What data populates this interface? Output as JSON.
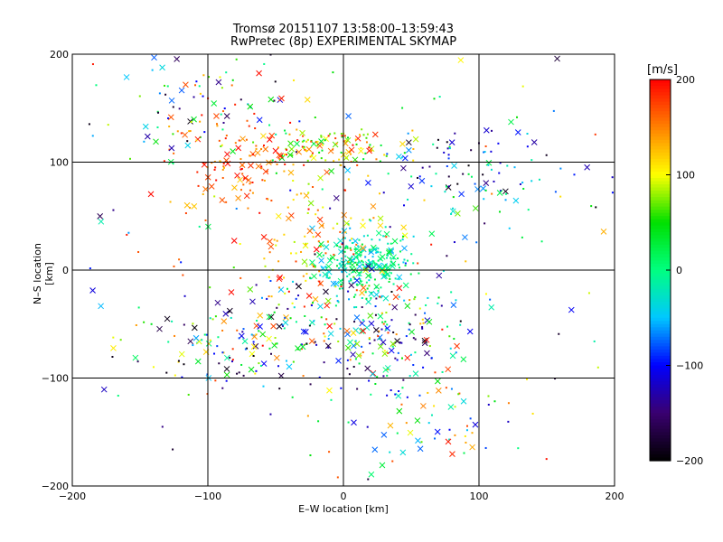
{
  "chart_data": {
    "type": "scatter",
    "title": "Tromsø 20151107 13:58:00–13:59:43",
    "subtitle": "RwPretec (8p) EXPERIMENTAL SKYMAP",
    "xlabel": "E–W location [km]",
    "ylabel": "N–S location [km]",
    "xlim": [
      -200,
      200
    ],
    "ylim": [
      -200,
      200
    ],
    "xticks": [
      -200,
      -100,
      0,
      100,
      200
    ],
    "yticks": [
      -200,
      -100,
      0,
      100,
      200
    ],
    "grid": true,
    "colorbar": {
      "label": "[m/s]",
      "range": [
        -200,
        200
      ],
      "ticks": [
        -200,
        -100,
        0,
        100,
        200
      ],
      "colormap": [
        "#000000",
        "#3a0070",
        "#0000ff",
        "#00c8ff",
        "#00ff80",
        "#00e000",
        "#ffff00",
        "#ff8000",
        "#ff0000"
      ]
    },
    "marker_legend": "x = larger marker, . = small marker",
    "clusters": [
      {
        "cx": 15,
        "cy": 5,
        "sx": 18,
        "sy": 15,
        "n": 260,
        "vmin": -60,
        "vmax": 40
      },
      {
        "cx": -20,
        "cy": 115,
        "sx": 30,
        "sy": 8,
        "n": 120,
        "vmin": 20,
        "vmax": 200
      },
      {
        "cx": -80,
        "cy": 100,
        "sx": 25,
        "sy": 25,
        "n": 110,
        "vmin": 120,
        "vmax": 200
      },
      {
        "cx": 35,
        "cy": -60,
        "sx": 25,
        "sy": 25,
        "n": 140,
        "vmin": -200,
        "vmax": 200
      },
      {
        "cx": -40,
        "cy": -55,
        "sx": 30,
        "sy": 25,
        "n": 120,
        "vmin": -200,
        "vmax": 200
      },
      {
        "cx": 90,
        "cy": 90,
        "sx": 40,
        "sy": 25,
        "n": 110,
        "vmin": -200,
        "vmax": 60
      },
      {
        "cx": -20,
        "cy": 30,
        "sx": 25,
        "sy": 30,
        "n": 110,
        "vmin": 60,
        "vmax": 200
      },
      {
        "cx": -100,
        "cy": -80,
        "sx": 30,
        "sy": 20,
        "n": 60,
        "vmin": -200,
        "vmax": 120
      },
      {
        "cx": -110,
        "cy": 160,
        "sx": 40,
        "sy": 25,
        "n": 80,
        "vmin": -200,
        "vmax": 200
      },
      {
        "cx": 60,
        "cy": -130,
        "sx": 35,
        "sy": 35,
        "n": 60,
        "vmin": -120,
        "vmax": 200
      },
      {
        "cx": 0,
        "cy": 0,
        "sx": 120,
        "sy": 110,
        "n": 200,
        "vmin": -200,
        "vmax": 200
      }
    ]
  }
}
